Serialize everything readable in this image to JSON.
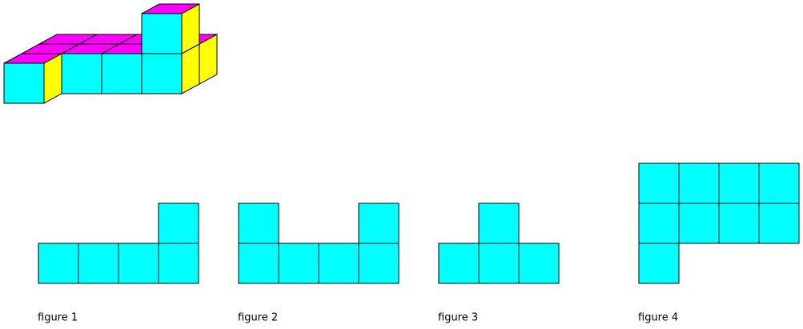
{
  "figures": [
    {
      "label": "figure 1"
    },
    {
      "label": "figure 2"
    },
    {
      "label": "figure 3"
    },
    {
      "label": "figure 4"
    }
  ]
}
